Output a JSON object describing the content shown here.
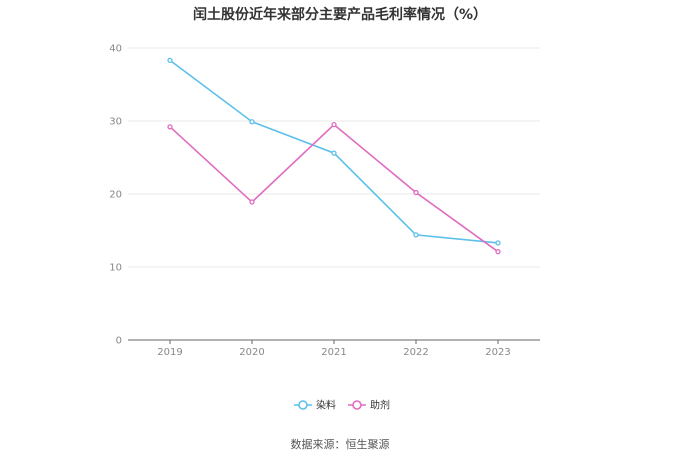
{
  "chart_data": {
    "type": "line",
    "title": "闰土股份近年来部分主要产品毛利率情况（%）",
    "categories": [
      "2019",
      "2020",
      "2021",
      "2022",
      "2023"
    ],
    "series": [
      {
        "name": "染料",
        "color": "#5bc0eb",
        "values": [
          38.3,
          29.9,
          25.6,
          14.4,
          13.3
        ]
      },
      {
        "name": "助剂",
        "color": "#e06bbf",
        "values": [
          29.2,
          18.9,
          29.5,
          20.2,
          12.1
        ]
      }
    ],
    "ylim": [
      0,
      40
    ],
    "yticks": [
      0,
      10,
      20,
      30,
      40
    ],
    "grid": true,
    "legend_position": "bottom-center"
  },
  "footer": {
    "source": "数据来源：恒生聚源"
  }
}
